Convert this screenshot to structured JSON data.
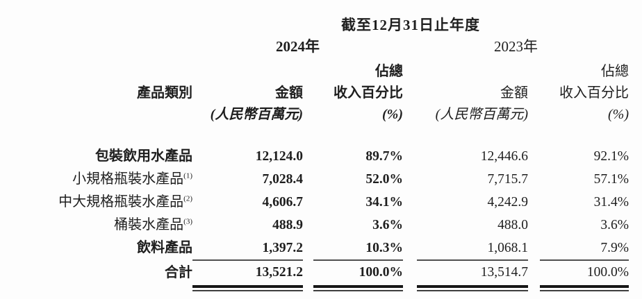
{
  "table": {
    "period_header": "截至12月31日止年度",
    "year_2024": "2024年",
    "year_2023": "2023年",
    "product_col_header": "產品類別",
    "sub": {
      "share_line1": "佔總",
      "amount": "金額",
      "share_line2": "收入百分比",
      "amount_unit": "(人民幣百萬元)",
      "share_unit": "(%)"
    },
    "rows": [
      {
        "label": "包裝飲用水產品",
        "footnote": "",
        "amount_2024": "12,124.0",
        "pct_2024": "89.7%",
        "amount_2023": "12,446.6",
        "pct_2023": "92.1%"
      },
      {
        "label": "小規格瓶裝水產品",
        "footnote": "(1)",
        "amount_2024": "7,028.4",
        "pct_2024": "52.0%",
        "amount_2023": "7,715.7",
        "pct_2023": "57.1%"
      },
      {
        "label": "中大規格瓶裝水產品",
        "footnote": "(2)",
        "amount_2024": "4,606.7",
        "pct_2024": "34.1%",
        "amount_2023": "4,242.9",
        "pct_2023": "31.4%"
      },
      {
        "label": "桶裝水產品",
        "footnote": "(3)",
        "amount_2024": "488.9",
        "pct_2024": "3.6%",
        "amount_2023": "488.0",
        "pct_2023": "3.6%"
      },
      {
        "label": "飲料產品",
        "footnote": "",
        "amount_2024": "1,397.2",
        "pct_2024": "10.3%",
        "amount_2023": "1,068.1",
        "pct_2023": "7.9%"
      }
    ],
    "total_row": {
      "label": "合計",
      "amount_2024": "13,521.2",
      "pct_2024": "100.0%",
      "amount_2023": "13,514.7",
      "pct_2023": "100.0%"
    },
    "text_color": "#1e1e1e",
    "rule_color": "#161616"
  }
}
